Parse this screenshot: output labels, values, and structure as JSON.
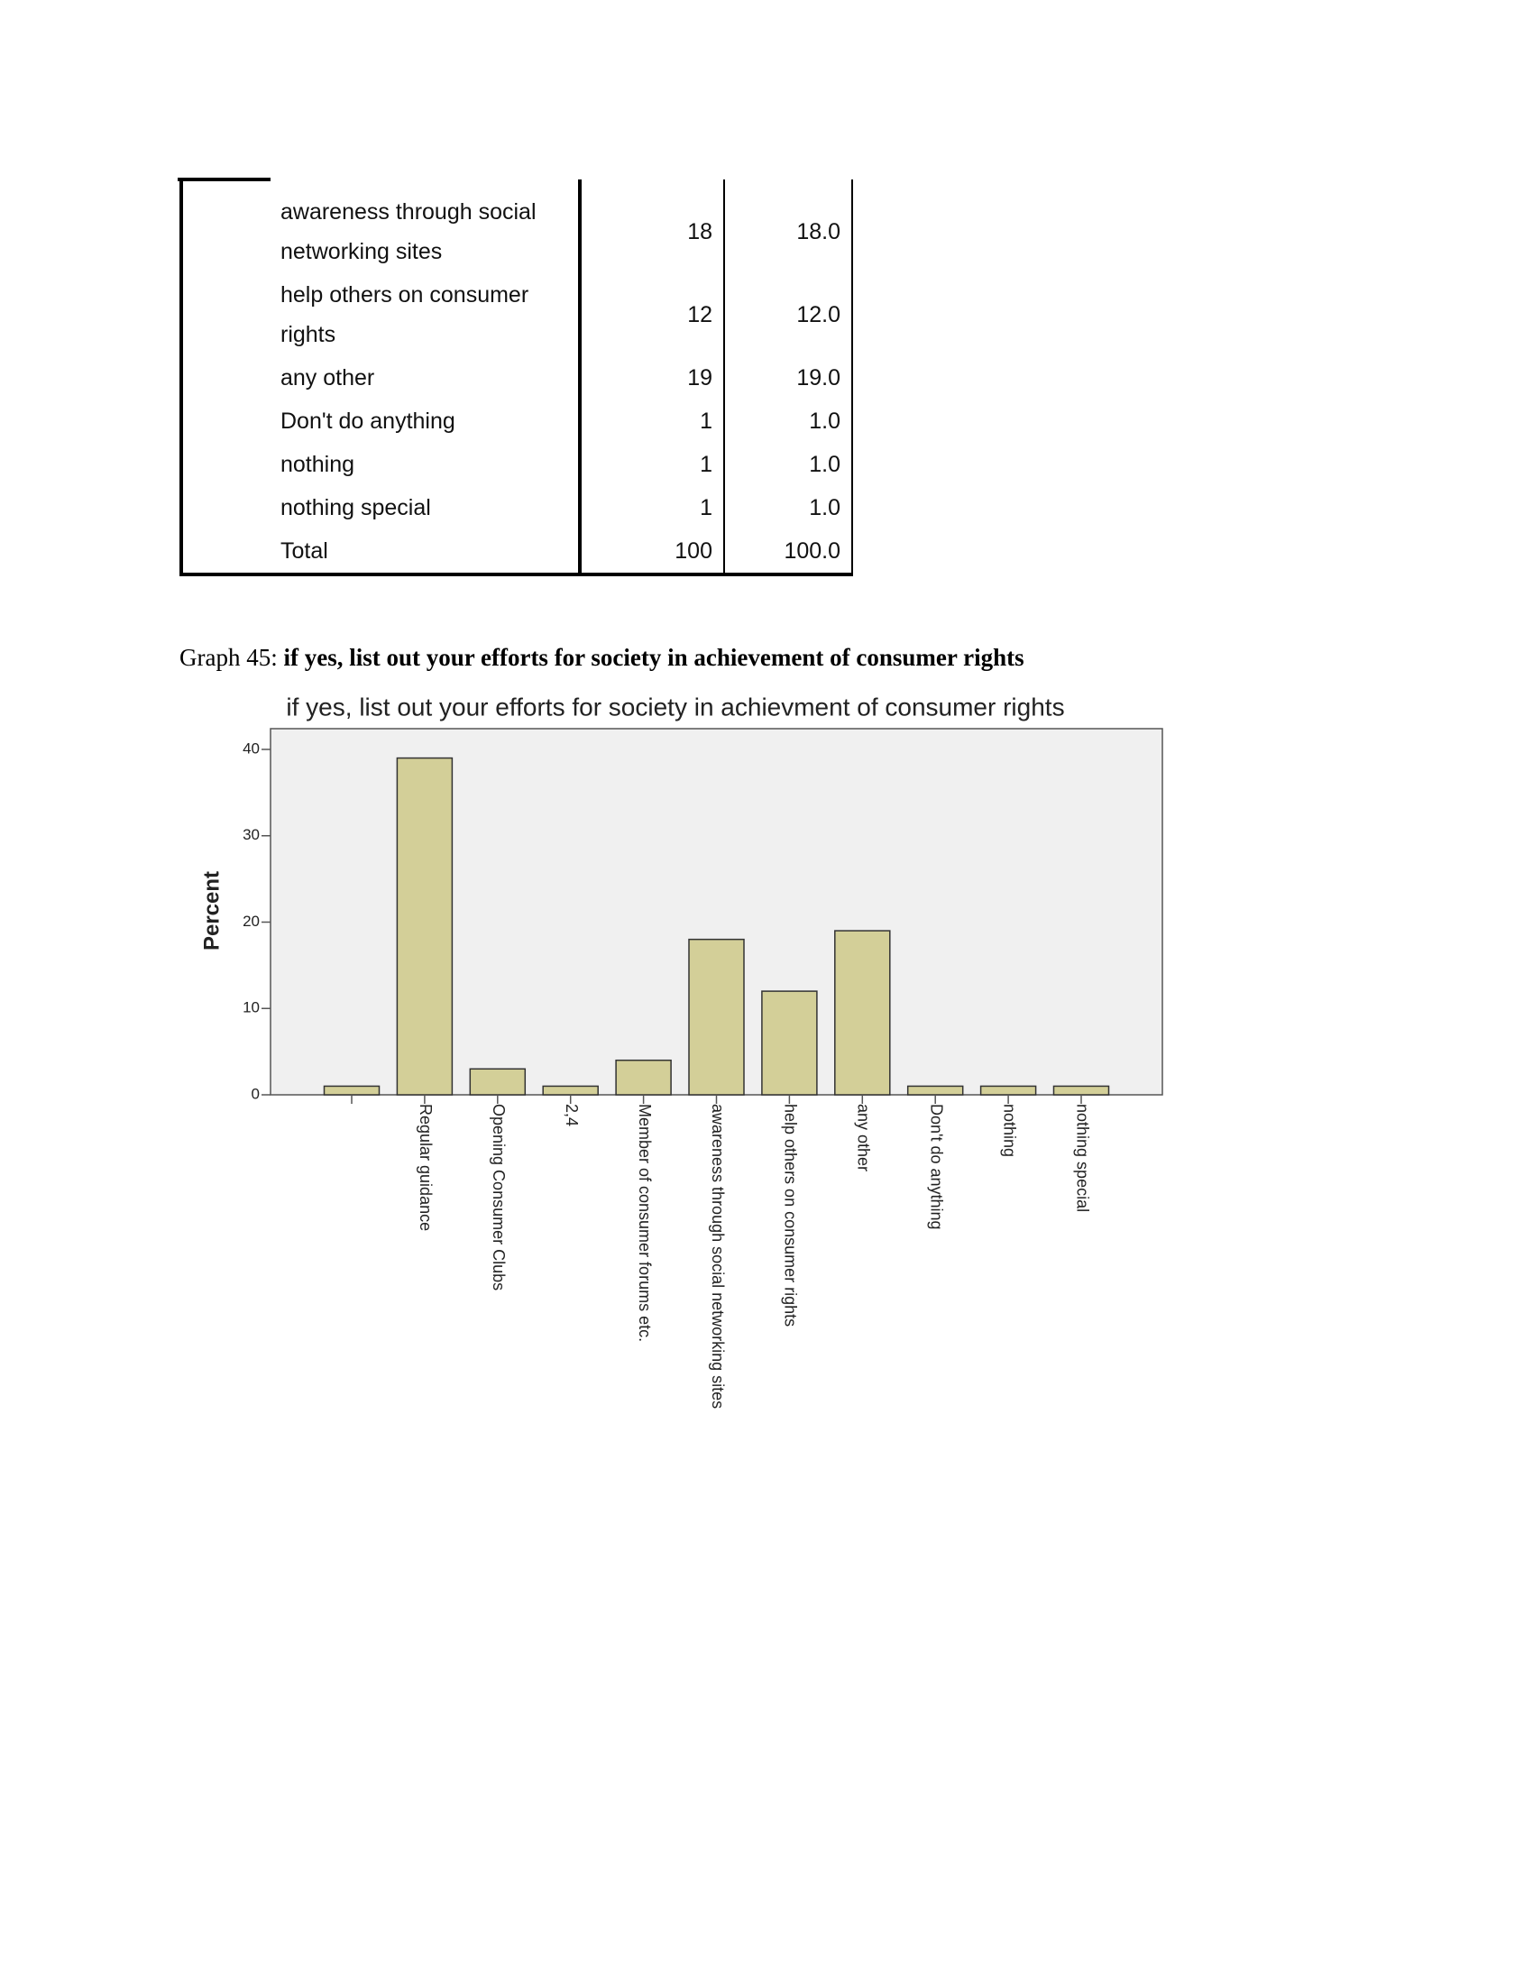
{
  "table": {
    "rows": [
      [
        "awareness  through social networking sites",
        "18",
        "18.0"
      ],
      [
        "help others on consumer rights",
        "12",
        "12.0"
      ],
      [
        "any other",
        "19",
        "19.0"
      ],
      [
        "Don't do anything",
        "1",
        "1.0"
      ],
      [
        "nothing",
        "1",
        "1.0"
      ],
      [
        "nothing special",
        "1",
        "1.0"
      ],
      [
        "Total",
        "100",
        "100.0"
      ]
    ]
  },
  "caption": {
    "number": "Graph 45:",
    "text": "if yes, list out your efforts for society in achievement of consumer rights"
  },
  "chart_data": {
    "type": "bar",
    "title": "if yes, list out your efforts for society in achievment of consumer rights",
    "x_label": "if yes, list out your efforts for society in achievment of consumer rights",
    "y_label": "Percent",
    "categories": [
      null,
      "Regular guidance",
      "Opening Consumer Clubs",
      "2,4",
      "Member of consumer forums etc.",
      "awareness  through social networking sites",
      "help others on consumer rights",
      "any other",
      "Don't do anything",
      "nothing",
      "nothing special"
    ],
    "values": [
      1,
      39,
      3,
      1,
      4,
      18,
      12,
      19,
      1,
      1,
      1
    ],
    "color": "#d3cf98",
    "ylim": [
      0,
      40
    ],
    "yticks": [
      0,
      10,
      20,
      30,
      40
    ],
    "grid": false
  }
}
